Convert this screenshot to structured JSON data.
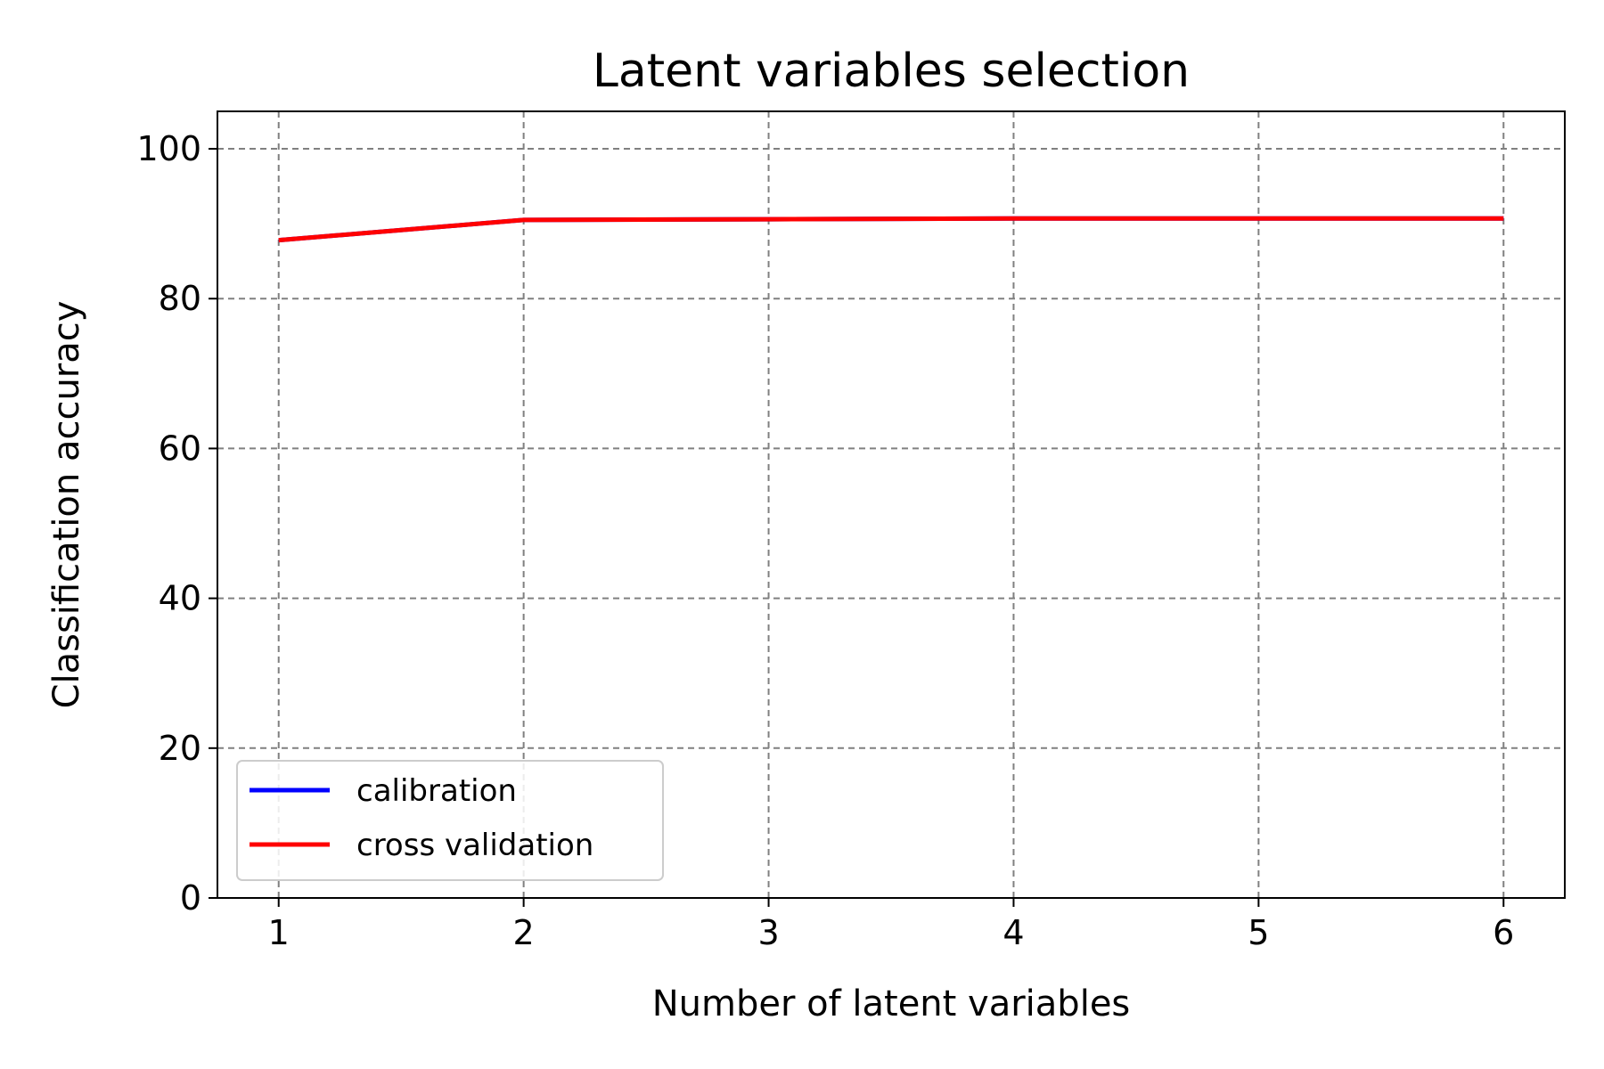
{
  "chart_data": {
    "type": "line",
    "title": "Latent variables selection",
    "xlabel": "Number of latent variables",
    "ylabel": "Classification accuracy",
    "x": [
      1,
      2,
      3,
      4,
      5,
      6
    ],
    "xlim": [
      0.75,
      6.25
    ],
    "ylim": [
      0,
      105
    ],
    "xticks": [
      1,
      2,
      3,
      4,
      5,
      6
    ],
    "yticks": [
      0,
      20,
      40,
      60,
      80,
      100
    ],
    "grid": true,
    "legend_position": "lower-left",
    "series": [
      {
        "name": "calibration",
        "color": "#0000ff",
        "values": [
          87.8,
          90.5,
          90.6,
          90.7,
          90.7,
          90.7
        ]
      },
      {
        "name": "cross validation",
        "color": "#ff0000",
        "values": [
          87.8,
          90.5,
          90.6,
          90.7,
          90.7,
          90.7
        ]
      }
    ]
  }
}
